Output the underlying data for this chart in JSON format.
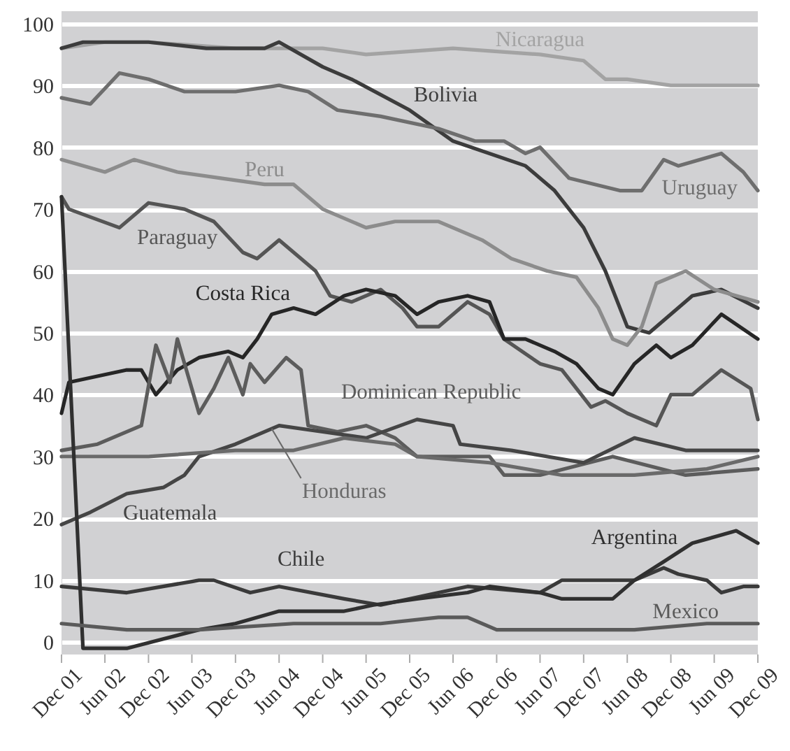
{
  "chart_data": {
    "type": "line",
    "grid": "y",
    "ylim": [
      -2,
      102
    ],
    "yticks": [
      0,
      10,
      20,
      30,
      40,
      50,
      60,
      70,
      80,
      90,
      100
    ],
    "xlim": [
      "2001-12",
      "2009-12"
    ],
    "xticks": [
      {
        "value": "2001-12",
        "label": "Dec 01"
      },
      {
        "value": "2002-06",
        "label": "Jun 02"
      },
      {
        "value": "2002-12",
        "label": "Dec 02"
      },
      {
        "value": "2003-06",
        "label": "Jun 03"
      },
      {
        "value": "2003-12",
        "label": "Dec 03"
      },
      {
        "value": "2004-06",
        "label": "Jun 04"
      },
      {
        "value": "2004-12",
        "label": "Dec 04"
      },
      {
        "value": "2005-06",
        "label": "Jun 05"
      },
      {
        "value": "2005-12",
        "label": "Dec 05"
      },
      {
        "value": "2006-06",
        "label": "Jun 06"
      },
      {
        "value": "2006-12",
        "label": "Dec 06"
      },
      {
        "value": "2007-06",
        "label": "Jun 07"
      },
      {
        "value": "2007-12",
        "label": "Dec 07"
      },
      {
        "value": "2008-06",
        "label": "Jun 08"
      },
      {
        "value": "2008-12",
        "label": "Dec 08"
      },
      {
        "value": "2009-06",
        "label": "Jun 09"
      },
      {
        "value": "2009-12",
        "label": "Dec 09"
      }
    ],
    "series": [
      {
        "name": "Nicaragua",
        "color": "#a3a3a3",
        "x": [
          "2001-12",
          "2002-06",
          "2002-12",
          "2003-12",
          "2004-12",
          "2005-06",
          "2006-06",
          "2007-06",
          "2007-12",
          "2008-03",
          "2008-06",
          "2008-12",
          "2009-06",
          "2009-12"
        ],
        "values": [
          96,
          97,
          97,
          96,
          96,
          95,
          96,
          95,
          94,
          91,
          91,
          90,
          90,
          90
        ]
      },
      {
        "name": "Bolivia",
        "color": "#3c3c3c",
        "x": [
          "2001-12",
          "2002-03",
          "2002-12",
          "2003-08",
          "2004-04",
          "2004-06",
          "2004-12",
          "2005-04",
          "2005-12",
          "2006-06",
          "2007-04",
          "2007-08",
          "2007-12",
          "2008-03",
          "2008-06",
          "2008-09",
          "2009-03",
          "2009-07",
          "2009-12"
        ],
        "values": [
          96,
          97,
          97,
          96,
          96,
          97,
          93,
          91,
          86,
          81,
          77,
          73,
          67,
          60,
          51,
          50,
          56,
          57,
          54
        ]
      },
      {
        "name": "Uruguay",
        "color": "#6e6e6e",
        "x": [
          "2001-12",
          "2002-04",
          "2002-08",
          "2002-12",
          "2003-05",
          "2003-12",
          "2004-06",
          "2004-10",
          "2005-02",
          "2005-08",
          "2006-04",
          "2006-09",
          "2007-01",
          "2007-04",
          "2007-06",
          "2007-10",
          "2008-05",
          "2008-08",
          "2008-11",
          "2009-01",
          "2009-07",
          "2009-10",
          "2009-12"
        ],
        "values": [
          88,
          87,
          92,
          91,
          89,
          89,
          90,
          89,
          86,
          85,
          83,
          81,
          81,
          79,
          80,
          75,
          73,
          73,
          78,
          77,
          79,
          76,
          73
        ]
      },
      {
        "name": "Peru",
        "color": "#8c8c8c",
        "x": [
          "2001-12",
          "2002-06",
          "2002-10",
          "2003-04",
          "2003-10",
          "2004-04",
          "2004-08",
          "2004-12",
          "2005-06",
          "2005-10",
          "2006-04",
          "2006-10",
          "2007-02",
          "2007-07",
          "2007-11",
          "2008-02",
          "2008-04",
          "2008-06",
          "2008-08",
          "2008-10",
          "2009-02",
          "2009-06",
          "2009-12"
        ],
        "values": [
          78,
          76,
          78,
          76,
          75,
          74,
          74,
          70,
          67,
          68,
          68,
          65,
          62,
          60,
          59,
          54,
          49,
          48,
          51,
          58,
          60,
          57,
          55
        ]
      },
      {
        "name": "Paraguay",
        "color": "#555555",
        "x": [
          "2001-12",
          "2002-01",
          "2002-08",
          "2002-12",
          "2003-05",
          "2003-09",
          "2004-01",
          "2004-03",
          "2004-06",
          "2004-11",
          "2005-01",
          "2005-04",
          "2005-08",
          "2005-11",
          "2006-01",
          "2006-04",
          "2006-08",
          "2006-11",
          "2007-01",
          "2007-06",
          "2007-09",
          "2008-01",
          "2008-03",
          "2008-06",
          "2008-10",
          "2008-12",
          "2009-03",
          "2009-07",
          "2009-11",
          "2009-12"
        ],
        "values": [
          72,
          70,
          67,
          71,
          70,
          68,
          63,
          62,
          65,
          60,
          56,
          55,
          57,
          54,
          51,
          51,
          55,
          53,
          49,
          45,
          44,
          38,
          39,
          37,
          35,
          40,
          40,
          44,
          41,
          36
        ]
      },
      {
        "name": "Costa Rica",
        "color": "#262626",
        "x": [
          "2001-12",
          "2002-01",
          "2002-09",
          "2002-11",
          "2003-01",
          "2003-04",
          "2003-07",
          "2003-11",
          "2004-01",
          "2004-03",
          "2004-05",
          "2004-08",
          "2004-11",
          "2005-03",
          "2005-06",
          "2005-10",
          "2006-01",
          "2006-04",
          "2006-08",
          "2006-11",
          "2007-01",
          "2007-04",
          "2007-08",
          "2007-11",
          "2008-02",
          "2008-04",
          "2008-07",
          "2008-10",
          "2008-12",
          "2009-03",
          "2009-07",
          "2009-12"
        ],
        "values": [
          37,
          42,
          44,
          44,
          40,
          44,
          46,
          47,
          46,
          49,
          53,
          54,
          53,
          56,
          57,
          56,
          53,
          55,
          56,
          55,
          49,
          49,
          47,
          45,
          41,
          40,
          45,
          48,
          46,
          48,
          53,
          49
        ]
      },
      {
        "name": "Dominican Republic",
        "color": "#5c5c5c",
        "x": [
          "2001-12",
          "2002-05",
          "2002-11",
          "2003-01",
          "2003-03",
          "2003-04",
          "2003-07",
          "2003-09",
          "2003-11",
          "2004-01",
          "2004-02",
          "2004-04",
          "2004-07",
          "2004-09",
          "2004-10",
          "2005-02",
          "2005-06",
          "2005-10",
          "2006-01",
          "2006-11",
          "2007-01",
          "2007-06",
          "2008-04",
          "2009-02",
          "2009-12"
        ],
        "values": [
          31,
          32,
          35,
          48,
          42,
          49,
          37,
          41,
          46,
          40,
          45,
          42,
          46,
          44,
          35,
          34,
          35,
          33,
          30,
          30,
          27,
          27,
          30,
          27,
          28
        ]
      },
      {
        "name": "Guatemala",
        "color": "#454545",
        "x": [
          "2001-12",
          "2002-04",
          "2002-09",
          "2003-02",
          "2003-05",
          "2003-07",
          "2003-12",
          "2004-06",
          "2004-12",
          "2005-06",
          "2006-01",
          "2006-06",
          "2006-07",
          "2007-02",
          "2007-12",
          "2008-07",
          "2009-02",
          "2009-12"
        ],
        "values": [
          19,
          21,
          24,
          25,
          27,
          30,
          32,
          35,
          34,
          33,
          36,
          35,
          32,
          31,
          29,
          33,
          31,
          31
        ]
      },
      {
        "name": "Honduras",
        "color": "#6a6a6a",
        "x": [
          "2001-12",
          "2002-12",
          "2003-12",
          "2004-08",
          "2005-03",
          "2005-10",
          "2006-01",
          "2006-11",
          "2007-09",
          "2008-07",
          "2009-05",
          "2009-12"
        ],
        "values": [
          30,
          30,
          31,
          31,
          33,
          32,
          30,
          29,
          27,
          27,
          28,
          30
        ]
      },
      {
        "name": "Chile",
        "color": "#3a3a3a",
        "x": [
          "2001-12",
          "2002-09",
          "2003-07",
          "2003-09",
          "2004-02",
          "2004-06",
          "2005-03",
          "2005-08",
          "2006-04",
          "2006-08",
          "2007-06",
          "2007-09",
          "2008-07",
          "2008-11",
          "2009-01",
          "2009-05",
          "2009-07",
          "2009-10",
          "2009-12"
        ],
        "values": [
          9,
          8,
          10,
          10,
          8,
          9,
          7,
          6,
          8,
          9,
          8,
          10,
          10,
          12,
          11,
          10,
          8,
          9,
          9
        ]
      },
      {
        "name": "Argentina",
        "color": "#303030",
        "x": [
          "2001-12",
          "2002-03",
          "2002-09",
          "2003-07",
          "2003-12",
          "2004-06",
          "2005-03",
          "2005-07",
          "2006-01",
          "2006-08",
          "2006-11",
          "2007-06",
          "2007-09",
          "2008-04",
          "2008-07",
          "2008-11",
          "2009-03",
          "2009-09",
          "2009-12"
        ],
        "values": [
          72,
          -1,
          -1,
          2,
          3,
          5,
          5,
          6,
          7,
          8,
          9,
          8,
          7,
          7,
          10,
          13,
          16,
          18,
          16
        ]
      },
      {
        "name": "Mexico",
        "color": "#5a5a5a",
        "x": [
          "2001-12",
          "2002-09",
          "2003-07",
          "2004-08",
          "2005-08",
          "2006-04",
          "2006-08",
          "2006-12",
          "2007-12",
          "2008-07",
          "2009-05",
          "2009-12"
        ],
        "values": [
          3,
          2,
          2,
          3,
          3,
          4,
          4,
          2,
          2,
          2,
          3,
          3
        ]
      }
    ]
  }
}
